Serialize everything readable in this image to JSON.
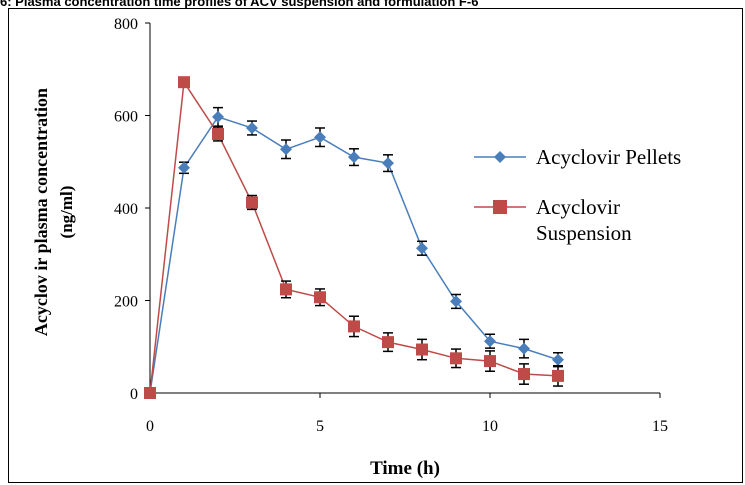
{
  "header": {
    "caption": "6: Plasma concentration time profiles of ACV suspension and formulation F-6"
  },
  "chart_data": {
    "type": "line",
    "xlabel": "Time  (h)",
    "ylabel": "Acyclov ir plasma concentration",
    "ylabel_unit": "(ng/ml)",
    "xlim": [
      0,
      15
    ],
    "ylim": [
      0,
      800
    ],
    "xticks": [
      "0",
      "5",
      "10",
      "15"
    ],
    "yticks": [
      "0",
      "200",
      "400",
      "600",
      "800"
    ],
    "grid": false,
    "legend_position": "right",
    "series": [
      {
        "name": "Acyclovir Pellets",
        "legend_lines": [
          "Acyclovir Pellets"
        ],
        "color": "#4a7ebb",
        "marker": "diamond",
        "x": [
          0,
          1,
          2,
          3,
          4,
          5,
          6,
          7,
          8,
          9,
          10,
          11,
          12
        ],
        "values": [
          0,
          487,
          597,
          573,
          527,
          553,
          510,
          497,
          313,
          198,
          112,
          96,
          72
        ],
        "errors": [
          0,
          12,
          20,
          15,
          20,
          20,
          18,
          18,
          15,
          15,
          15,
          20,
          15
        ]
      },
      {
        "name": "Acyclovir Suspension",
        "legend_lines": [
          "Acyclovir",
          "Suspension"
        ],
        "color": "#be4b48",
        "marker": "square",
        "x": [
          0,
          1,
          2,
          3,
          4,
          5,
          6,
          7,
          8,
          9,
          10,
          11,
          12
        ],
        "values": [
          0,
          672,
          560,
          412,
          224,
          207,
          144,
          110,
          94,
          75,
          69,
          41,
          37
        ],
        "errors": [
          0,
          10,
          15,
          15,
          18,
          18,
          22,
          20,
          22,
          20,
          22,
          22,
          22
        ]
      }
    ]
  }
}
